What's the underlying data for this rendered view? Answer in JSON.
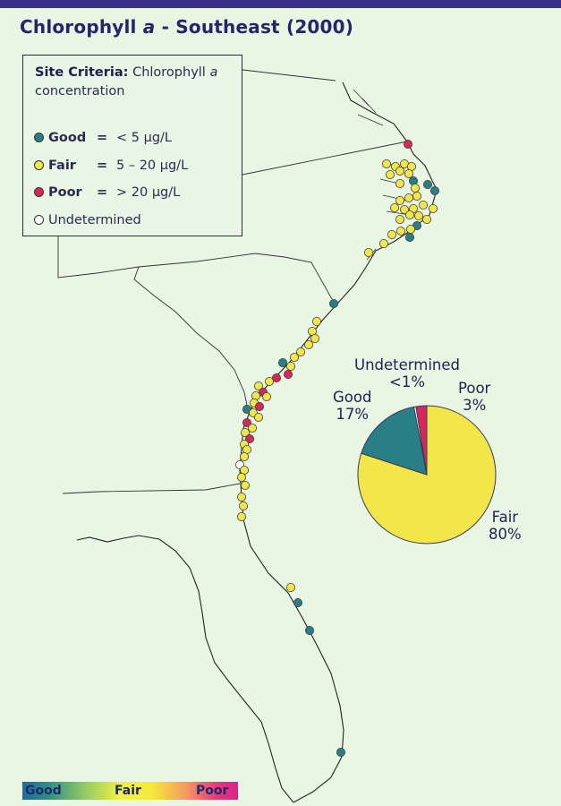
{
  "title": {
    "main": "Chlorophyll ",
    "italic": "a",
    "rest": " - Southeast (2000)"
  },
  "legend": {
    "heading_bold": "Site Criteria:",
    "heading_text": " Chlorophyll ",
    "heading_italic": "a",
    "heading_tail": " concentration",
    "items": [
      {
        "name": "Good",
        "eq": "=",
        "range": "< 5 µg/L",
        "color": "#2a7f86"
      },
      {
        "name": "Fair",
        "eq": "=",
        "range": "5 – 20 µg/L",
        "color": "#f2e64a"
      },
      {
        "name": "Poor",
        "eq": "=",
        "range": "> 20 µg/L",
        "color": "#d6285a"
      },
      {
        "name": "Undetermined",
        "color": "#ffffff"
      }
    ]
  },
  "pie": {
    "slices": [
      {
        "name": "Fair",
        "value": 80,
        "label": "80%",
        "color": "#f2e64a"
      },
      {
        "name": "Good",
        "value": 17,
        "label": "17%",
        "color": "#2a7f86"
      },
      {
        "name": "Undetermined",
        "value": 0.5,
        "label": "<1%",
        "color": "#ffffff"
      },
      {
        "name": "Poor",
        "value": 2.5,
        "label": "3%",
        "color": "#d6285a"
      }
    ]
  },
  "colorbar": {
    "left": "Good",
    "center": "Fair",
    "right": "Poor"
  },
  "colors": {
    "good": "#2a7f86",
    "fair": "#f2e64a",
    "poor": "#d6285a",
    "undetermined": "#ffffff",
    "background": "#e9f6e4",
    "title": "#26246a"
  }
}
